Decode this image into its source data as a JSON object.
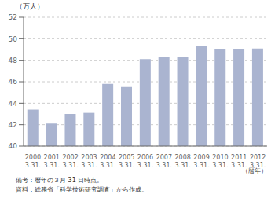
{
  "chart_data": {
    "type": "bar",
    "ylabel": "（万人）",
    "xlabel": "（暦年）",
    "categories": [
      "2000\n3.31.",
      "2001\n3.31.",
      "2002\n3.31.",
      "2003\n3.31.",
      "2004\n3.31.",
      "2005\n3.31.",
      "2006\n3.31.",
      "2007\n3.31.",
      "2008\n3.31.",
      "2009\n3.31.",
      "2010\n3.31.",
      "2011\n3.31.",
      "2012\n3.31."
    ],
    "values": [
      43.4,
      42.1,
      43.0,
      43.1,
      45.8,
      45.5,
      48.1,
      48.3,
      48.3,
      49.3,
      49.0,
      49.0,
      49.1
    ],
    "color": "#aab4d0",
    "ylim": [
      40,
      52
    ],
    "yticks": [
      40,
      42,
      44,
      46,
      48,
      50,
      52
    ],
    "grid": true,
    "annotations": [
      "備考：暦年の３月 31 日時点。",
      "資料：総務省「科学技術研究調査」から作成。"
    ]
  }
}
